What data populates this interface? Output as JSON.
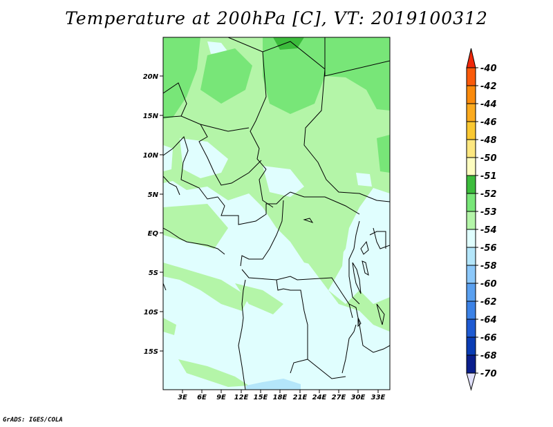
{
  "title": "Temperature at 200hPa [C], VT: 2019100312",
  "credit": "GrADS: IGES/COLA",
  "map": {
    "lat_labels": [
      "20N",
      "15N",
      "10N",
      "5N",
      "EQ",
      "5S",
      "10S",
      "15S"
    ],
    "lon_labels": [
      "3E",
      "6E",
      "9E",
      "12E",
      "15E",
      "18E",
      "21E",
      "24E",
      "27E",
      "30E",
      "33E"
    ]
  },
  "colorbar": {
    "levels": [
      "-40",
      "-42",
      "-44",
      "-46",
      "-48",
      "-50",
      "-51",
      "-52",
      "-53",
      "-54",
      "-56",
      "-58",
      "-60",
      "-62",
      "-64",
      "-66",
      "-68",
      "-70"
    ],
    "colors": [
      "#f0280a",
      "#fa5a0a",
      "#fa8a0c",
      "#fbaa1e",
      "#fac832",
      "#fde780",
      "#fdfdc0",
      "#3cbc3c",
      "#78e678",
      "#b4f5a8",
      "#e0fefe",
      "#b4e6fa",
      "#8cc8fa",
      "#5aa0f0",
      "#3c82e6",
      "#1e5ad2",
      "#0a3cb4",
      "#0a1e8c",
      "#000064",
      "#e0e0fa"
    ]
  }
}
